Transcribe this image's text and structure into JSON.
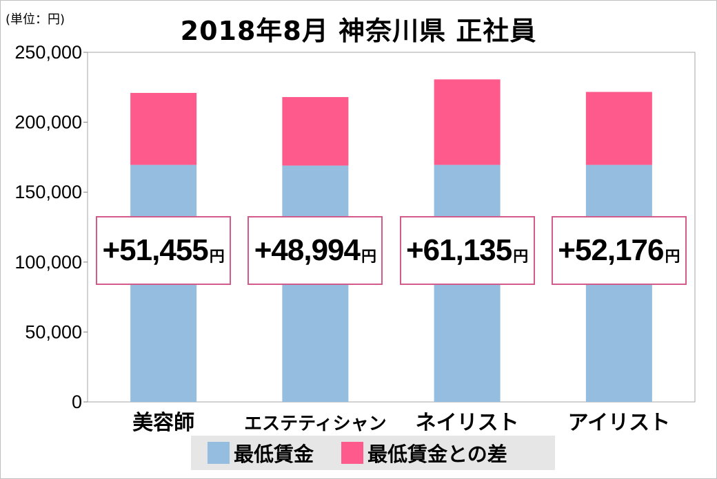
{
  "unit_label": "(単位：円)",
  "chart_data": {
    "type": "bar",
    "stacked": true,
    "title": "2018年8月 神奈川県 正社員",
    "categories": [
      "美容師",
      "エステティシャン",
      "ネイリスト",
      "アイリスト"
    ],
    "series": [
      {
        "name": "最低賃金",
        "color": "#95bde0",
        "values": [
          169500,
          169000,
          169500,
          169500
        ]
      },
      {
        "name": "最低賃金との差",
        "color": "#ff5a8c",
        "values": [
          51455,
          48994,
          61135,
          52176
        ]
      }
    ],
    "ylim": [
      0,
      250000
    ],
    "yticks": [
      "0",
      "50,000",
      "100,000",
      "150,000",
      "200,000",
      "250,000"
    ],
    "ytick_values": [
      0,
      50000,
      100000,
      150000,
      200000,
      250000
    ],
    "grid": false,
    "legend_position": "bottom"
  },
  "diff_labels": [
    {
      "value": "+51,455",
      "unit": "円"
    },
    {
      "value": "+48,994",
      "unit": "円"
    },
    {
      "value": "+61,135",
      "unit": "円"
    },
    {
      "value": "+52,176",
      "unit": "円"
    }
  ],
  "legend": [
    {
      "label": "最低賃金",
      "color": "#95bde0"
    },
    {
      "label": "最低賃金との差",
      "color": "#ff5a8c"
    }
  ]
}
